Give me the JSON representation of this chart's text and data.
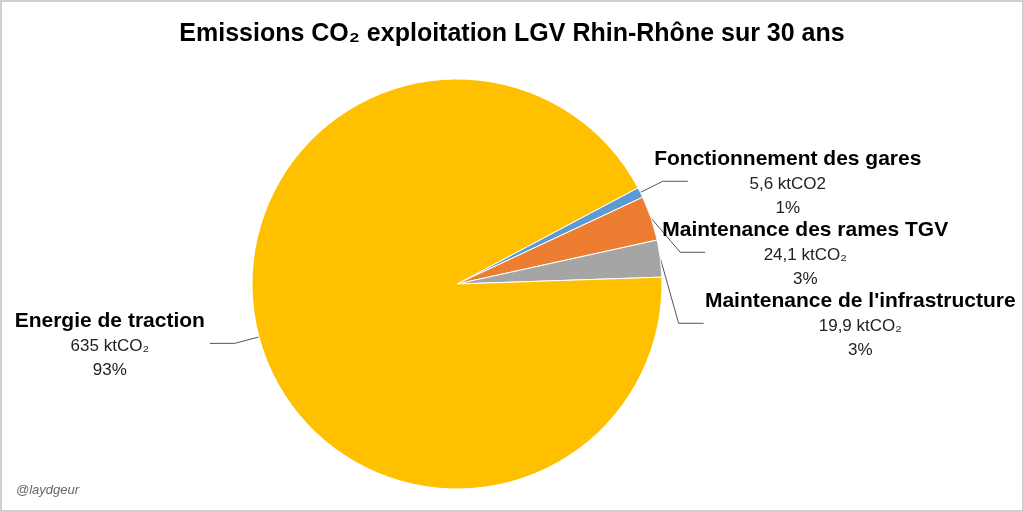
{
  "chart_data": {
    "type": "pie",
    "title": "Emissions CO₂ exploitation LGV Rhin-Rhône sur 30 ans",
    "categories": [
      "Fonctionnement des gares",
      "Maintenance des rames TGV",
      "Maintenance de l'infrastructure",
      "Energie de traction"
    ],
    "values": [
      5.6,
      24.1,
      19.9,
      635
    ],
    "colors": [
      "#5b9bd5",
      "#ed7d31",
      "#a5a5a5",
      "#ffc000"
    ],
    "value_labels": [
      "5,6 ktCO2\n1%",
      "24,1 ktCO₂\n3%",
      "19,9 ktCO₂\n3%",
      "635 ktCO₂\n93%"
    ],
    "annotations": [
      "@laydgeur"
    ]
  }
}
